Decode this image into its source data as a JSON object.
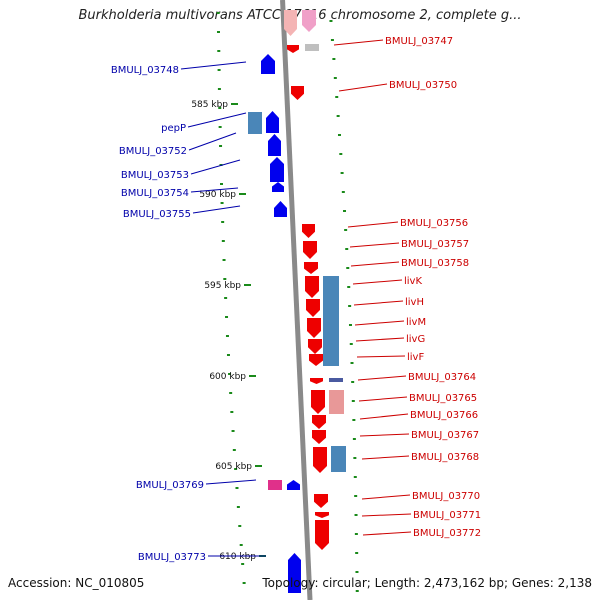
{
  "title": "Burkholderia multivorans ATCC 17616 chromosome 2, complete g...",
  "footer": {
    "accession": "Accession: NC_010805",
    "topology": "Topology: circular; Length: 2,473,162 bp; Genes: 2,138"
  },
  "colors": {
    "backbone": "#8a8a8a",
    "forward_gene": "#0000ee",
    "reverse_gene": "#ee0000",
    "protein_feature": "#4a86b8",
    "tick": "#1a8a1a",
    "label_left": "#0000aa",
    "label_right": "#cc0000"
  },
  "ruler": [
    {
      "label": "585 kbp"
    },
    {
      "label": "590 kbp"
    },
    {
      "label": "595 kbp"
    },
    {
      "label": "600 kbp"
    },
    {
      "label": "605 kbp"
    },
    {
      "label": "610 kbp"
    }
  ],
  "left_labels": [
    "BMULJ_03748",
    "pepP",
    "BMULJ_03752",
    "BMULJ_03753",
    "BMULJ_03754",
    "BMULJ_03755",
    "BMULJ_03769",
    "BMULJ_03773"
  ],
  "right_labels": [
    "BMULJ_03747",
    "BMULJ_03750",
    "BMULJ_03756",
    "BMULJ_03757",
    "BMULJ_03758",
    "livK",
    "livH",
    "livM",
    "livG",
    "livF",
    "BMULJ_03764",
    "BMULJ_03765",
    "BMULJ_03766",
    "BMULJ_03767",
    "BMULJ_03768",
    "BMULJ_03770",
    "BMULJ_03771",
    "BMULJ_03772"
  ]
}
